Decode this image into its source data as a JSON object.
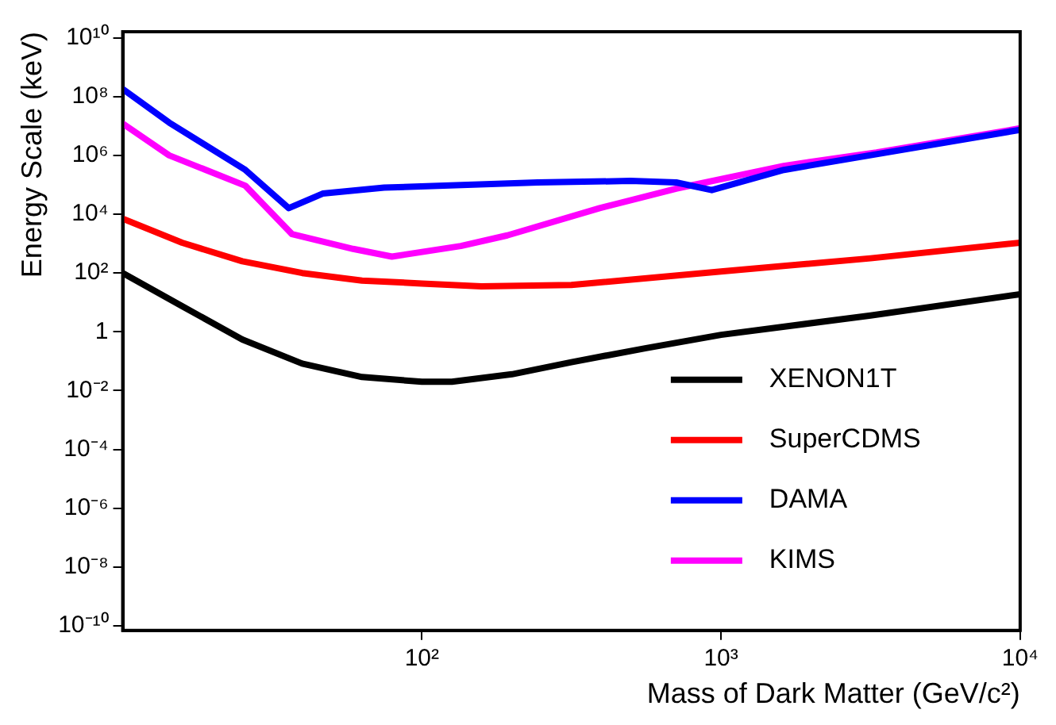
{
  "chart_data": {
    "type": "line",
    "xlabel": "Mass of Dark Matter (GeV/c²)",
    "ylabel": "Energy Scale (keV)",
    "log": "xy",
    "grid": false,
    "legend": "bottom right",
    "marker": "none",
    "line_style": "solid",
    "xlim": [
      10,
      10000
    ],
    "xticks": [
      {
        "value": 100,
        "label": "10²"
      },
      {
        "value": 1000,
        "label": "10³"
      },
      {
        "value": 10000,
        "label": "10⁴"
      }
    ],
    "ylim": [
      7e-11,
      16000000000.0
    ],
    "yticks": [
      {
        "value": 1e-10,
        "label": "10⁻¹⁰"
      },
      {
        "value": 1e-08,
        "label": "10⁻⁸"
      },
      {
        "value": 1e-06,
        "label": "10⁻⁶"
      },
      {
        "value": 0.0001,
        "label": "10⁻⁴"
      },
      {
        "value": 0.01,
        "label": "10⁻²"
      },
      1,
      {
        "value": 100,
        "label": "10²"
      },
      {
        "value": 10000.0,
        "label": "10⁴"
      },
      {
        "value": 1000000.0,
        "label": "10⁶"
      },
      {
        "value": 100000000.0,
        "label": "10⁸"
      },
      {
        "value": 10000000000.0,
        "label": "10¹⁰"
      }
    ],
    "series": [
      {
        "name": "XENON1T",
        "color": "#000000",
        "x": [
          10,
          15.8,
          25.1,
          39.8,
          63.1,
          100,
          126,
          200,
          316,
          562,
          1000,
          3162,
          10000
        ],
        "values": [
          100,
          7.4,
          0.55,
          0.083,
          0.029,
          0.02,
          0.02,
          0.036,
          0.093,
          0.28,
          0.79,
          3.6,
          19
        ]
      },
      {
        "name": "SuperCDMS",
        "color": "#ff0000",
        "x": [
          10,
          15.8,
          25.1,
          39.8,
          63.1,
          100,
          158,
          316,
          1000,
          3162,
          10000
        ],
        "values": [
          7000,
          1070,
          250,
          100,
          55,
          44,
          35,
          39,
          112,
          316,
          1070
        ]
      },
      {
        "name": "DAMA",
        "color": "#0000ff",
        "x": [
          10,
          14.3,
          25.7,
          35.9,
          46.6,
          74.8,
          244,
          498,
          708,
          931,
          1622,
          3311,
          10000
        ],
        "values": [
          180000000,
          13000000,
          320000,
          16000,
          50000,
          80000,
          120000,
          135000,
          120000,
          66000,
          320000,
          1100000,
          7400000
        ]
      },
      {
        "name": "KIMS",
        "color": "#ff00ff",
        "x": [
          10,
          14.3,
          25.7,
          36.8,
          58.9,
          79.4,
          135,
          193,
          393,
          708,
          1622,
          3311,
          10000
        ],
        "values": [
          12000000,
          1000000,
          93000,
          2100,
          660,
          360,
          830,
          1900,
          16000,
          74000,
          440000,
          1260000,
          8300000
        ]
      }
    ]
  }
}
